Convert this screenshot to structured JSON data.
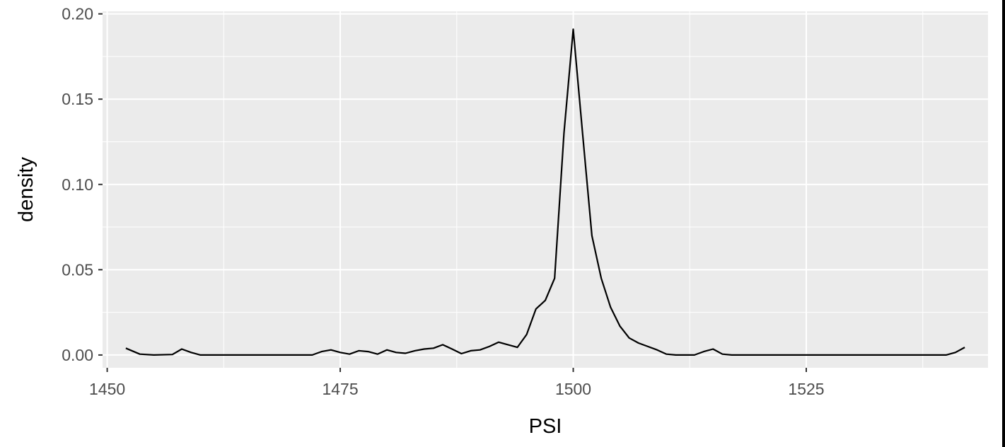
{
  "chart_data": {
    "type": "line",
    "title": "",
    "xlabel": "PSI",
    "ylabel": "density",
    "xlim": [
      1449.5,
      1544.5
    ],
    "ylim": [
      -0.0075,
      0.2015
    ],
    "x_ticks": [
      1450,
      1475,
      1500,
      1525
    ],
    "x_tick_labels": [
      "1450",
      "1475",
      "1500",
      "1525"
    ],
    "y_ticks": [
      0.0,
      0.05,
      0.1,
      0.15,
      0.2
    ],
    "y_tick_labels": [
      "0.00",
      "0.05",
      "0.10",
      "0.15",
      "0.20"
    ],
    "grid": true,
    "legend": "none",
    "colors": {
      "panel_background": "#ebebeb",
      "grid": "#ffffff",
      "line": "#000000",
      "tick_text": "#4d4d4d",
      "title_text": "#000000"
    },
    "series": [
      {
        "x": [
          1452,
          1453.5,
          1455,
          1457,
          1458,
          1459,
          1460,
          1465,
          1472,
          1473,
          1474,
          1475,
          1476,
          1477,
          1478,
          1479,
          1480,
          1481,
          1482,
          1483,
          1484,
          1485,
          1486,
          1487,
          1488,
          1489,
          1490,
          1491,
          1492,
          1493,
          1494,
          1495,
          1496,
          1497,
          1498,
          1499,
          1500,
          1501,
          1502,
          1503,
          1504,
          1505,
          1506,
          1507,
          1508,
          1509,
          1510,
          1511,
          1512,
          1513,
          1514,
          1515,
          1516,
          1517,
          1520,
          1530,
          1540,
          1541,
          1542
        ],
        "y": [
          0.004,
          0.0005,
          0.0,
          0.0003,
          0.0035,
          0.0015,
          0.0,
          0.0,
          0.0,
          0.002,
          0.003,
          0.0015,
          0.0005,
          0.0025,
          0.002,
          0.0005,
          0.003,
          0.0015,
          0.001,
          0.0025,
          0.0035,
          0.004,
          0.006,
          0.0035,
          0.0008,
          0.0025,
          0.003,
          0.005,
          0.0075,
          0.006,
          0.0045,
          0.012,
          0.027,
          0.032,
          0.045,
          0.13,
          0.191,
          0.13,
          0.07,
          0.045,
          0.028,
          0.017,
          0.01,
          0.007,
          0.005,
          0.003,
          0.0005,
          0.0,
          0.0,
          0.0,
          0.002,
          0.0035,
          0.0005,
          0.0,
          0.0,
          0.0,
          0.0,
          0.0015,
          0.0045
        ]
      }
    ]
  }
}
